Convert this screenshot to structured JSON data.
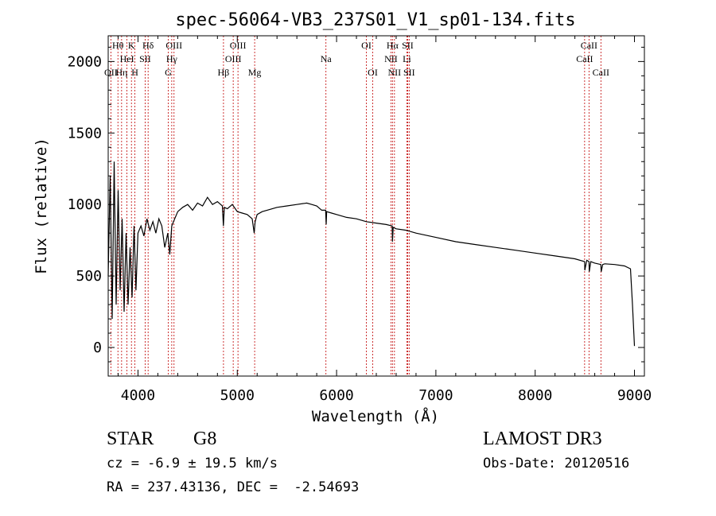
{
  "title": "spec-56064-VB3_237S01_V1_sp01-134.fits",
  "info": {
    "class": "STAR",
    "subclass": "G8",
    "survey": "LAMOST DR3",
    "cz": "cz = -6.9 ± 19.5 km/s",
    "obs_date": "Obs-Date: 20120516",
    "radec": "RA = 237.43136, DEC =  -2.54693"
  },
  "colors": {
    "axis": "#000000",
    "line": "#000000",
    "marker": "#c00000"
  },
  "chart_data": {
    "type": "line",
    "title": "spec-56064-VB3_237S01_V1_sp01-134.fits",
    "xlabel": "Wavelength (Å)",
    "ylabel": "Flux (relative)",
    "xlim": [
      3700,
      9100
    ],
    "ylim": [
      -200,
      2180
    ],
    "xticks": [
      4000,
      5000,
      6000,
      7000,
      8000,
      9000
    ],
    "yticks": [
      0,
      500,
      1000,
      1500,
      2000
    ],
    "xtick_labels": [
      "4000",
      "5000",
      "6000",
      "7000",
      "8000",
      "9000"
    ],
    "ytick_labels": [
      "0",
      "500",
      "1000",
      "1500",
      "2000"
    ],
    "series": [
      {
        "name": "flux",
        "x": [
          3700,
          3720,
          3740,
          3760,
          3780,
          3800,
          3820,
          3840,
          3860,
          3880,
          3900,
          3920,
          3940,
          3960,
          3980,
          4000,
          4030,
          4060,
          4090,
          4120,
          4150,
          4180,
          4210,
          4240,
          4270,
          4300,
          4320,
          4340,
          4370,
          4400,
          4450,
          4500,
          4550,
          4600,
          4650,
          4700,
          4750,
          4800,
          4850,
          4860,
          4870,
          4900,
          4950,
          5000,
          5050,
          5100,
          5150,
          5170,
          5180,
          5200,
          5250,
          5300,
          5400,
          5500,
          5600,
          5700,
          5750,
          5800,
          5850,
          5890,
          5895,
          5900,
          5950,
          6000,
          6100,
          6200,
          6300,
          6400,
          6500,
          6560,
          6563,
          6570,
          6600,
          6700,
          6800,
          7000,
          7200,
          7400,
          7600,
          7800,
          8000,
          8200,
          8400,
          8498,
          8500,
          8520,
          8542,
          8545,
          8560,
          8600,
          8662,
          8665,
          8680,
          8700,
          8800,
          8900,
          8960,
          8980,
          9000
        ],
        "y": [
          500,
          1200,
          200,
          1300,
          300,
          1100,
          400,
          900,
          250,
          800,
          300,
          700,
          350,
          850,
          400,
          800,
          850,
          780,
          900,
          820,
          880,
          800,
          900,
          850,
          700,
          800,
          650,
          850,
          900,
          950,
          980,
          1000,
          960,
          1010,
          990,
          1050,
          1000,
          1020,
          990,
          850,
          980,
          970,
          1000,
          950,
          940,
          930,
          900,
          800,
          880,
          930,
          950,
          960,
          980,
          990,
          1000,
          1010,
          1000,
          990,
          960,
          960,
          860,
          950,
          940,
          930,
          910,
          900,
          880,
          870,
          860,
          850,
          740,
          840,
          830,
          820,
          800,
          770,
          740,
          720,
          700,
          680,
          660,
          640,
          620,
          600,
          540,
          610,
          600,
          530,
          600,
          590,
          580,
          530,
          580,
          585,
          580,
          570,
          550,
          300,
          10
        ]
      }
    ],
    "lines": [
      {
        "label": "Hθ",
        "x": 3798,
        "row": 1
      },
      {
        "label": "OII",
        "x": 3727,
        "row": 3
      },
      {
        "label": "Hη",
        "x": 3835,
        "row": 3
      },
      {
        "label": "HeI",
        "x": 3889,
        "row": 2
      },
      {
        "label": "K",
        "x": 3934,
        "row": 1
      },
      {
        "label": "H",
        "x": 3969,
        "row": 3
      },
      {
        "label": "SII",
        "x": 4072,
        "row": 2
      },
      {
        "label": "Hδ",
        "x": 4102,
        "row": 1
      },
      {
        "label": "OIII",
        "x": 4363,
        "row": 1
      },
      {
        "label": "Hγ",
        "x": 4340,
        "row": 2
      },
      {
        "label": "G",
        "x": 4305,
        "row": 3
      },
      {
        "label": "Hβ",
        "x": 4861,
        "row": 3
      },
      {
        "label": "OIII",
        "x": 5007,
        "row": 1
      },
      {
        "label": "OIII",
        "x": 4959,
        "row": 2
      },
      {
        "label": "Mg",
        "x": 5175,
        "row": 3
      },
      {
        "label": "Na",
        "x": 5893,
        "row": 2
      },
      {
        "label": "OI",
        "x": 6300,
        "row": 1
      },
      {
        "label": "OI",
        "x": 6364,
        "row": 3
      },
      {
        "label": "Hα",
        "x": 6563,
        "row": 1
      },
      {
        "label": "NII",
        "x": 6548,
        "row": 2
      },
      {
        "label": "NII",
        "x": 6583,
        "row": 3
      },
      {
        "label": "SII",
        "x": 6716,
        "row": 1
      },
      {
        "label": "Li",
        "x": 6708,
        "row": 2
      },
      {
        "label": "SII",
        "x": 6731,
        "row": 3
      },
      {
        "label": "CaII",
        "x": 8542,
        "row": 1
      },
      {
        "label": "CaII",
        "x": 8498,
        "row": 2
      },
      {
        "label": "CaII",
        "x": 8662,
        "row": 3
      }
    ]
  }
}
